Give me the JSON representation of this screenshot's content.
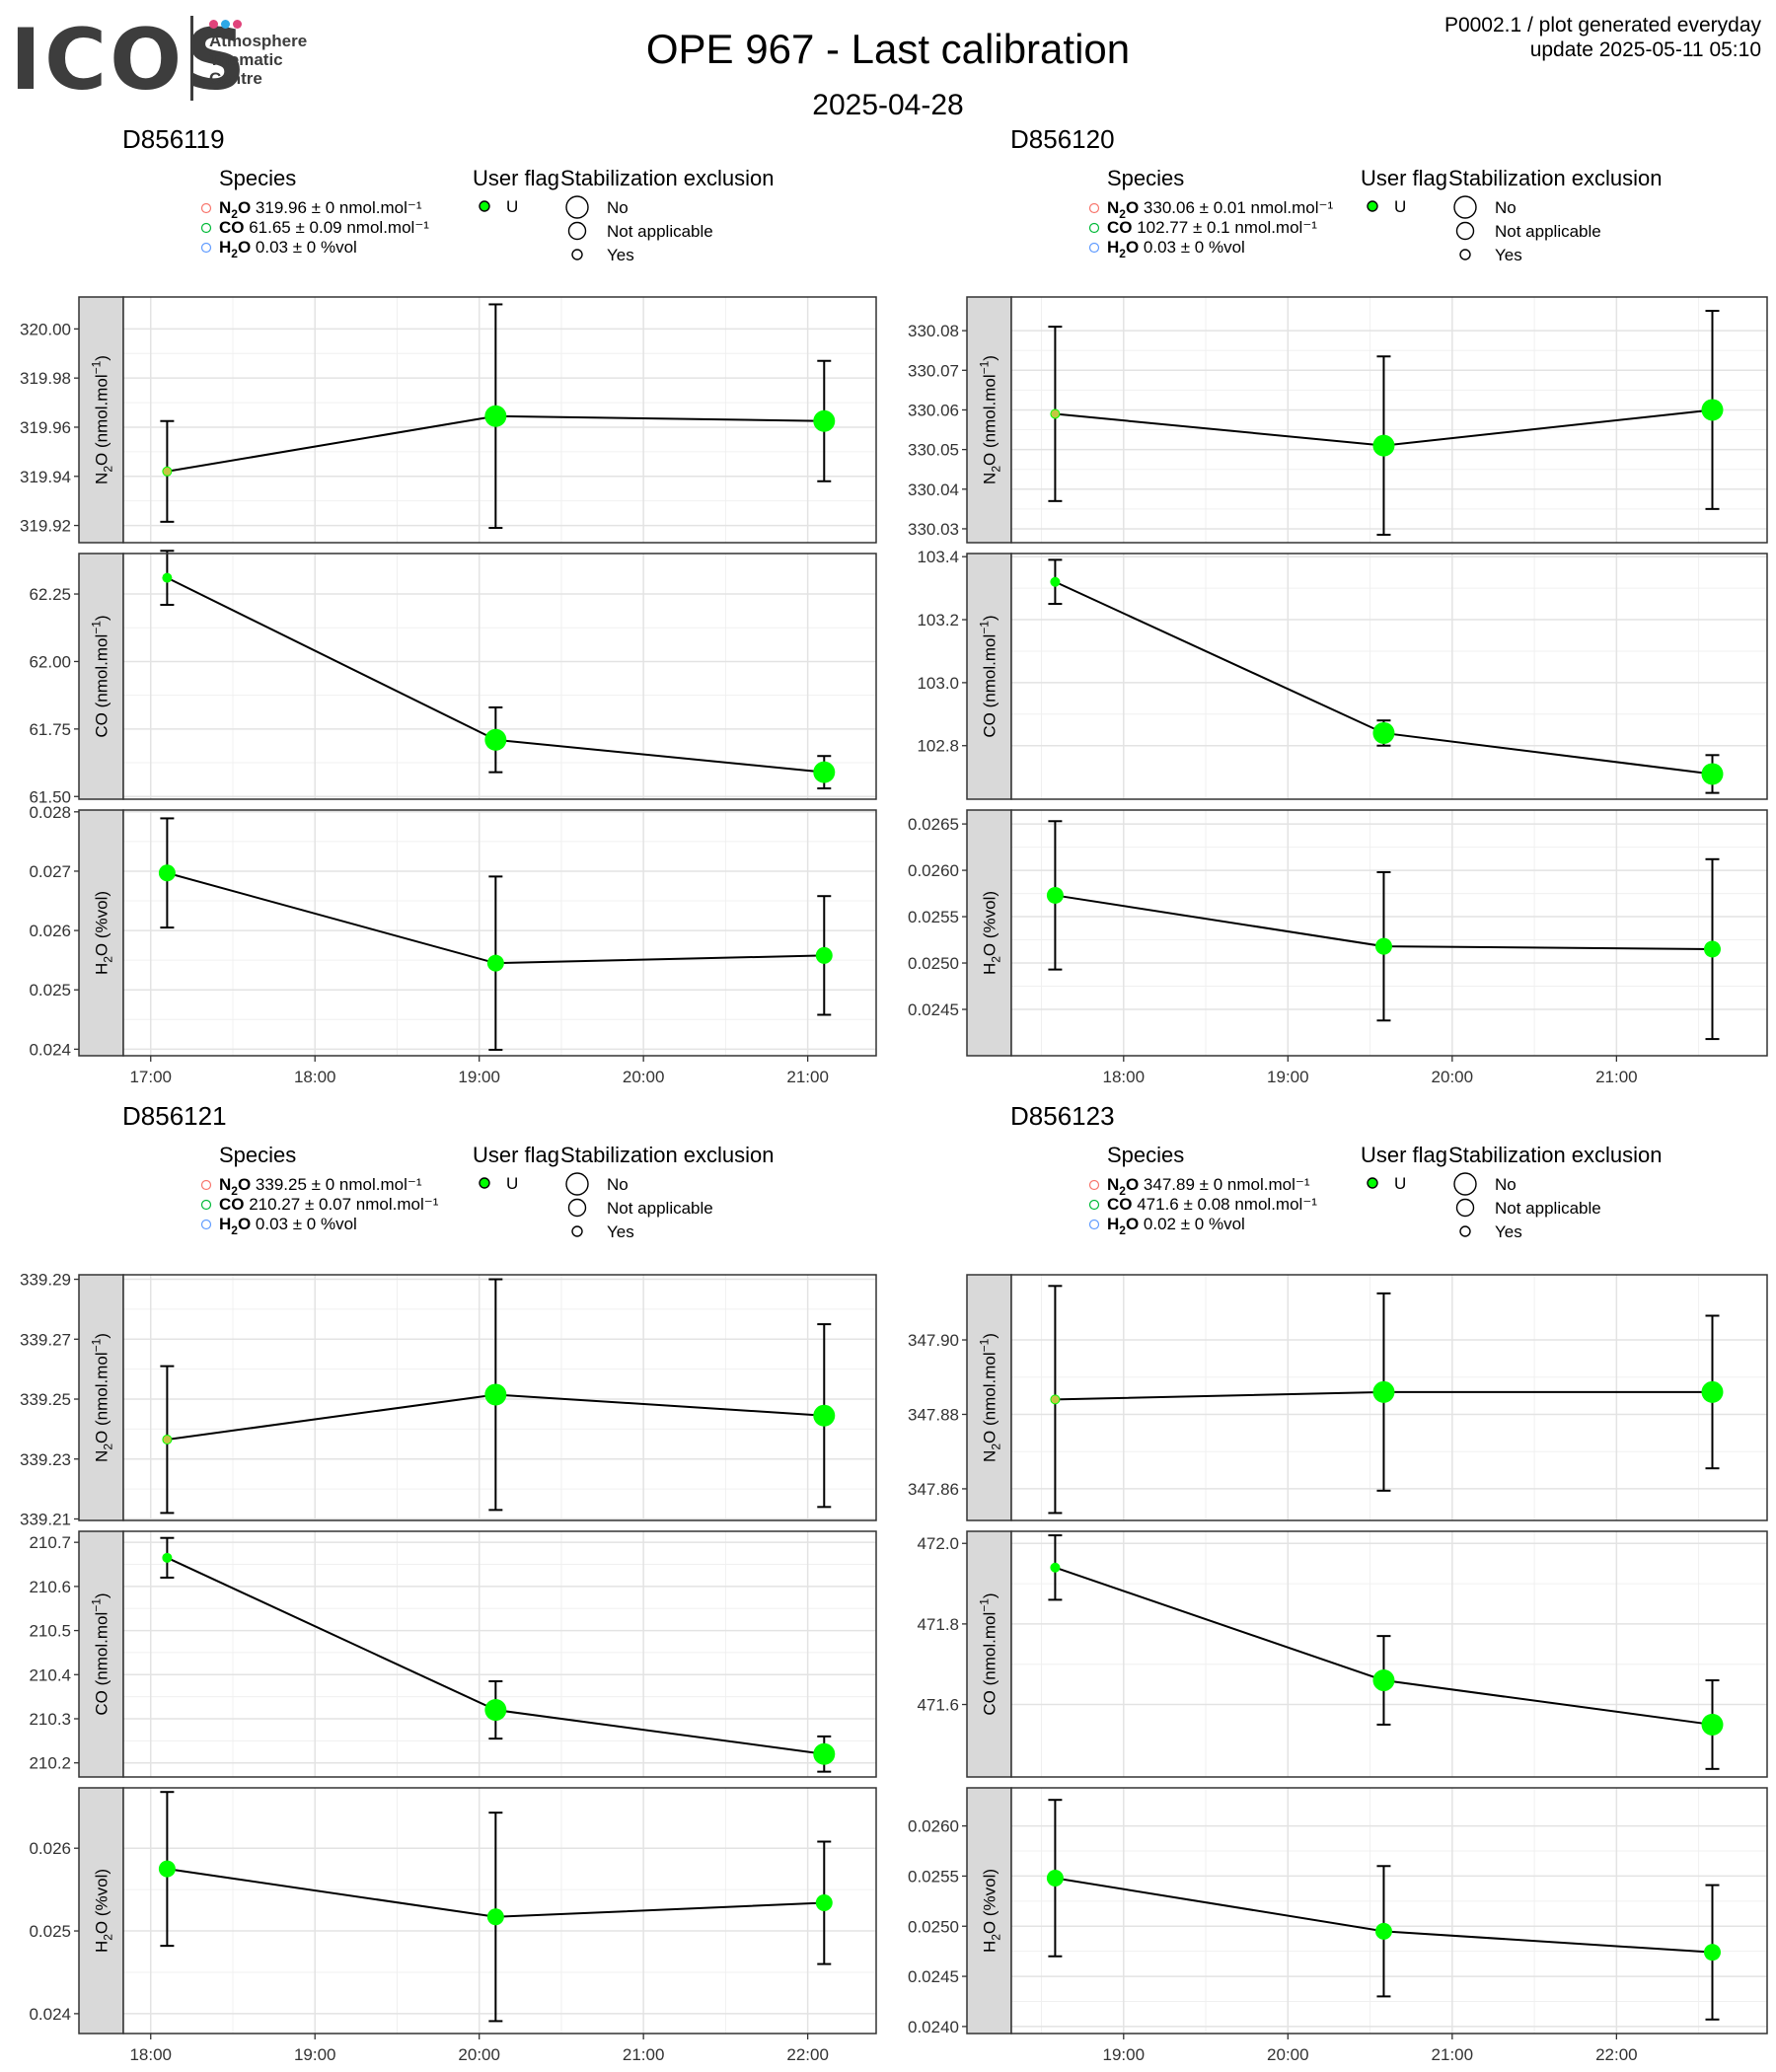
{
  "logo": {
    "wordmark": "ICOS",
    "lines": [
      "Atmosphere",
      "Thematic",
      "Centre"
    ],
    "dot_colors": [
      "#e0427a",
      "#2ea8e6",
      "#e0427a"
    ]
  },
  "title": "OPE 967 - Last calibration",
  "date": "2025-04-28",
  "meta": {
    "line1": "P0002.1 / plot generated everyday",
    "line2": "update  2025-05-11 05:10"
  },
  "legend_titles": {
    "species": "Species",
    "user_flag": "User flag",
    "stabilization": "Stabilization exclusion"
  },
  "legend_values": {
    "user_flag": [
      "U"
    ],
    "stabilization": [
      "No",
      "Not applicable",
      "Yes"
    ]
  },
  "colors": {
    "N2O": "#F8766D",
    "CO": "#00BA38",
    "H2O": "#619CFF",
    "point_fill": "#00FF00",
    "strip_fill": "#D9D9D9"
  },
  "chart_data": [
    {
      "type": "line",
      "title": "D856119",
      "legend": [
        {
          "species": "N2O",
          "value": "319.96",
          "sd": "0",
          "unit": "nmol.mol⁻¹"
        },
        {
          "species": "CO",
          "value": "61.65",
          "sd": "0.09",
          "unit": "nmol.mol⁻¹"
        },
        {
          "species": "H2O",
          "value": "0.03",
          "sd": "0",
          "unit": "%vol"
        }
      ],
      "x": [
        "17:06",
        "19:06",
        "21:06"
      ],
      "xlim": [
        "16:50",
        "21:25"
      ],
      "xticks": [
        "17:00",
        "18:00",
        "19:00",
        "20:00",
        "21:00"
      ],
      "panels": [
        {
          "strip": "N2O (nmol.mol-1)",
          "ylim": [
            319.913,
            320.013
          ],
          "yticks": [
            "319.92",
            "319.94",
            "319.96",
            "319.98",
            "320.00"
          ],
          "values": [
            319.942,
            319.9645,
            319.9625
          ],
          "errors": [
            0.0205,
            0.0455,
            0.0245
          ],
          "stabilization": [
            "Yes",
            "No",
            "No"
          ]
        },
        {
          "strip": "CO (nmol.mol-1)",
          "ylim": [
            61.49,
            62.4
          ],
          "yticks": [
            "61.50",
            "61.75",
            "62.00",
            "62.25"
          ],
          "values": [
            62.31,
            61.71,
            61.59
          ],
          "errors": [
            0.1,
            0.12,
            0.06
          ],
          "stabilization": [
            "Yes",
            "No",
            "No"
          ]
        },
        {
          "strip": "H2O (%vol)",
          "ylim": [
            0.02389,
            0.02803
          ],
          "yticks": [
            "0.024",
            "0.025",
            "0.026",
            "0.027",
            "0.028"
          ],
          "values": [
            0.02697,
            0.02545,
            0.02558
          ],
          "errors": [
            0.00092,
            0.00146,
            0.001
          ],
          "stabilization": [
            "Not applicable",
            "Not applicable",
            "Not applicable"
          ]
        }
      ]
    },
    {
      "type": "line",
      "title": "D856120",
      "legend": [
        {
          "species": "N2O",
          "value": "330.06",
          "sd": "0.01",
          "unit": "nmol.mol⁻¹"
        },
        {
          "species": "CO",
          "value": "102.77",
          "sd": "0.1",
          "unit": "nmol.mol⁻¹"
        },
        {
          "species": "H2O",
          "value": "0.03",
          "sd": "0",
          "unit": "%vol"
        }
      ],
      "x": [
        "17:35",
        "19:35",
        "21:35"
      ],
      "xlim": [
        "17:19",
        "21:55"
      ],
      "xticks": [
        "18:00",
        "19:00",
        "20:00",
        "21:00"
      ],
      "panels": [
        {
          "strip": "N2O (nmol.mol-1)",
          "ylim": [
            330.0265,
            330.0885
          ],
          "yticks": [
            "330.03",
            "330.04",
            "330.05",
            "330.06",
            "330.07",
            "330.08"
          ],
          "values": [
            330.059,
            330.051,
            330.06
          ],
          "errors": [
            0.022,
            0.0225,
            0.025
          ],
          "stabilization": [
            "Yes",
            "No",
            "No"
          ]
        },
        {
          "strip": "CO (nmol.mol-1)",
          "ylim": [
            102.63,
            103.41
          ],
          "yticks": [
            "102.8",
            "103.0",
            "103.2",
            "103.4"
          ],
          "values": [
            103.32,
            102.84,
            102.71
          ],
          "errors": [
            0.07,
            0.04,
            0.06
          ],
          "stabilization": [
            "Yes",
            "No",
            "No"
          ]
        },
        {
          "strip": "H2O (%vol)",
          "ylim": [
            0.024,
            0.02665
          ],
          "yticks": [
            "0.0245",
            "0.0250",
            "0.0255",
            "0.0260",
            "0.0265"
          ],
          "values": [
            0.02573,
            0.02518,
            0.02515
          ],
          "errors": [
            0.0008,
            0.0008,
            0.00097
          ],
          "stabilization": [
            "Not applicable",
            "Not applicable",
            "Not applicable"
          ]
        }
      ]
    },
    {
      "type": "line",
      "title": "D856121",
      "legend": [
        {
          "species": "N2O",
          "value": "339.25",
          "sd": "0",
          "unit": "nmol.mol⁻¹"
        },
        {
          "species": "CO",
          "value": "210.27",
          "sd": "0.07",
          "unit": "nmol.mol⁻¹"
        },
        {
          "species": "H2O",
          "value": "0.03",
          "sd": "0",
          "unit": "%vol"
        }
      ],
      "x": [
        "18:06",
        "20:06",
        "22:06"
      ],
      "xlim": [
        "17:50",
        "22:25"
      ],
      "xticks": [
        "18:00",
        "19:00",
        "20:00",
        "21:00",
        "22:00"
      ],
      "panels": [
        {
          "strip": "N2O (nmol.mol-1)",
          "ylim": [
            339.2095,
            339.2915
          ],
          "yticks": [
            "339.21",
            "339.23",
            "339.25",
            "339.27",
            "339.29"
          ],
          "values": [
            339.2365,
            339.2515,
            339.2445
          ],
          "errors": [
            0.0245,
            0.0385,
            0.0305
          ],
          "stabilization": [
            "Yes",
            "No",
            "No"
          ]
        },
        {
          "strip": "CO (nmol.mol-1)",
          "ylim": [
            210.168,
            210.725
          ],
          "yticks": [
            "210.2",
            "210.3",
            "210.4",
            "210.5",
            "210.6",
            "210.7"
          ],
          "values": [
            210.665,
            210.32,
            210.22
          ],
          "errors": [
            0.045,
            0.065,
            0.04
          ],
          "stabilization": [
            "Yes",
            "No",
            "No"
          ]
        },
        {
          "strip": "H2O (%vol)",
          "ylim": [
            0.02376,
            0.02673
          ],
          "yticks": [
            "0.024",
            "0.025",
            "0.026"
          ],
          "values": [
            0.02575,
            0.02517,
            0.02534
          ],
          "errors": [
            0.00093,
            0.00126,
            0.00074
          ],
          "stabilization": [
            "Not applicable",
            "Not applicable",
            "Not applicable"
          ]
        }
      ]
    },
    {
      "type": "line",
      "title": "D856123",
      "legend": [
        {
          "species": "N2O",
          "value": "347.89",
          "sd": "0",
          "unit": "nmol.mol⁻¹"
        },
        {
          "species": "CO",
          "value": "471.6",
          "sd": "0.08",
          "unit": "nmol.mol⁻¹"
        },
        {
          "species": "H2O",
          "value": "0.02",
          "sd": "0",
          "unit": "%vol"
        }
      ],
      "x": [
        "18:35",
        "20:35",
        "22:35"
      ],
      "xlim": [
        "18:19",
        "22:55"
      ],
      "xticks": [
        "19:00",
        "20:00",
        "21:00",
        "22:00"
      ],
      "panels": [
        {
          "strip": "N2O (nmol.mol-1)",
          "ylim": [
            347.8515,
            347.9175
          ],
          "yticks": [
            "347.86",
            "347.88",
            "347.90"
          ],
          "values": [
            347.884,
            347.886,
            347.886
          ],
          "errors": [
            0.0305,
            0.0265,
            0.0205
          ],
          "stabilization": [
            "Yes",
            "No",
            "No"
          ]
        },
        {
          "strip": "CO (nmol.mol-1)",
          "ylim": [
            471.42,
            472.03
          ],
          "yticks": [
            "471.6",
            "471.8",
            "472.0"
          ],
          "values": [
            471.94,
            471.66,
            471.55
          ],
          "errors": [
            0.08,
            0.11,
            0.11
          ],
          "stabilization": [
            "Yes",
            "No",
            "No"
          ]
        },
        {
          "strip": "H2O (%vol)",
          "ylim": [
            0.02393,
            0.02638
          ],
          "yticks": [
            "0.0240",
            "0.0245",
            "0.0250",
            "0.0255",
            "0.0260"
          ],
          "values": [
            0.02548,
            0.02495,
            0.02474
          ],
          "errors": [
            0.00078,
            0.00065,
            0.00067
          ],
          "stabilization": [
            "Not applicable",
            "Not applicable",
            "Not applicable"
          ]
        }
      ]
    }
  ]
}
